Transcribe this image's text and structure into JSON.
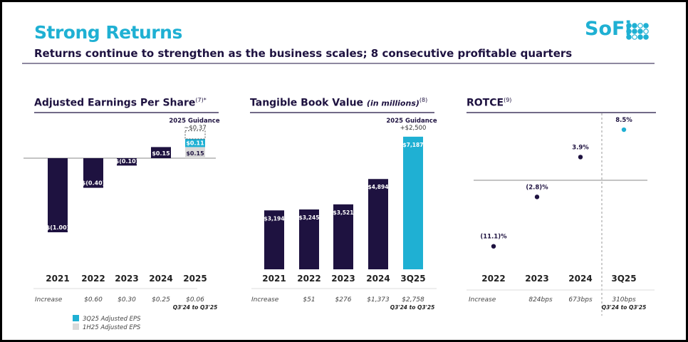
{
  "header": {
    "title": "Strong Returns",
    "subtitle": "Returns continue to strengthen as the business scales; 8 consecutive profitable quarters",
    "logo": "SoFi"
  },
  "colors": {
    "accent": "#1fb0d3",
    "navy": "#1e1240",
    "gray": "#d9d9d9"
  },
  "chart_data": [
    {
      "type": "bar",
      "title": "Adjusted Earnings Per Share",
      "title_note": "(7)*",
      "categories": [
        "2021",
        "2022",
        "2023",
        "2024",
        "2025"
      ],
      "values": [
        -1.0,
        -0.4,
        -0.1,
        0.15,
        0.15
      ],
      "labels": [
        "$(1.00)",
        "$(0.40)",
        "$(0.10)",
        "$0.15",
        "$0.15"
      ],
      "stack_top": {
        "category": "2025",
        "value": 0.11,
        "label": "$0.11"
      },
      "guidance": {
        "title": "2025 Guidance",
        "label": "~$0.37",
        "value": 0.37
      },
      "increase_label": "Increase",
      "increase": [
        "",
        "$0.60",
        "$0.30",
        "$0.25",
        "$0.06"
      ],
      "increase_note": "Q3'24 to Q3'25",
      "legend": [
        {
          "name": "3Q25 Adjusted EPS",
          "color": "#1fb0d3"
        },
        {
          "name": "1H25 Adjusted EPS",
          "color": "#d9d9d9"
        }
      ]
    },
    {
      "type": "bar",
      "title": "Tangible Book Value",
      "title_unit": "(in millions)",
      "title_note": "(8)",
      "categories": [
        "2021",
        "2022",
        "2023",
        "2024",
        "3Q25"
      ],
      "values": [
        3194,
        3245,
        3521,
        4894,
        7187
      ],
      "labels": [
        "$3,194",
        "$3,245",
        "$3,521",
        "$4,894",
        "$7,187"
      ],
      "guidance": {
        "title": "2025 Guidance",
        "label": "+$2,500"
      },
      "increase_label": "Increase",
      "increase": [
        "",
        "$51",
        "$276",
        "$1,373",
        "$2,758"
      ],
      "increase_note": "Q3'24 to Q3'25"
    },
    {
      "type": "scatter",
      "title": "ROTCE",
      "title_note": "(9)",
      "categories": [
        "2022",
        "2023",
        "2024",
        "3Q25"
      ],
      "values": [
        -11.1,
        -2.8,
        3.9,
        8.5
      ],
      "labels": [
        "(11.1)%",
        "(2.8)%",
        "3.9%",
        "8.5%"
      ],
      "increase_label": "Increase",
      "increase": [
        "",
        "824bps",
        "673bps",
        "310bps"
      ],
      "increase_note": "Q3'24 to Q3'25"
    }
  ]
}
